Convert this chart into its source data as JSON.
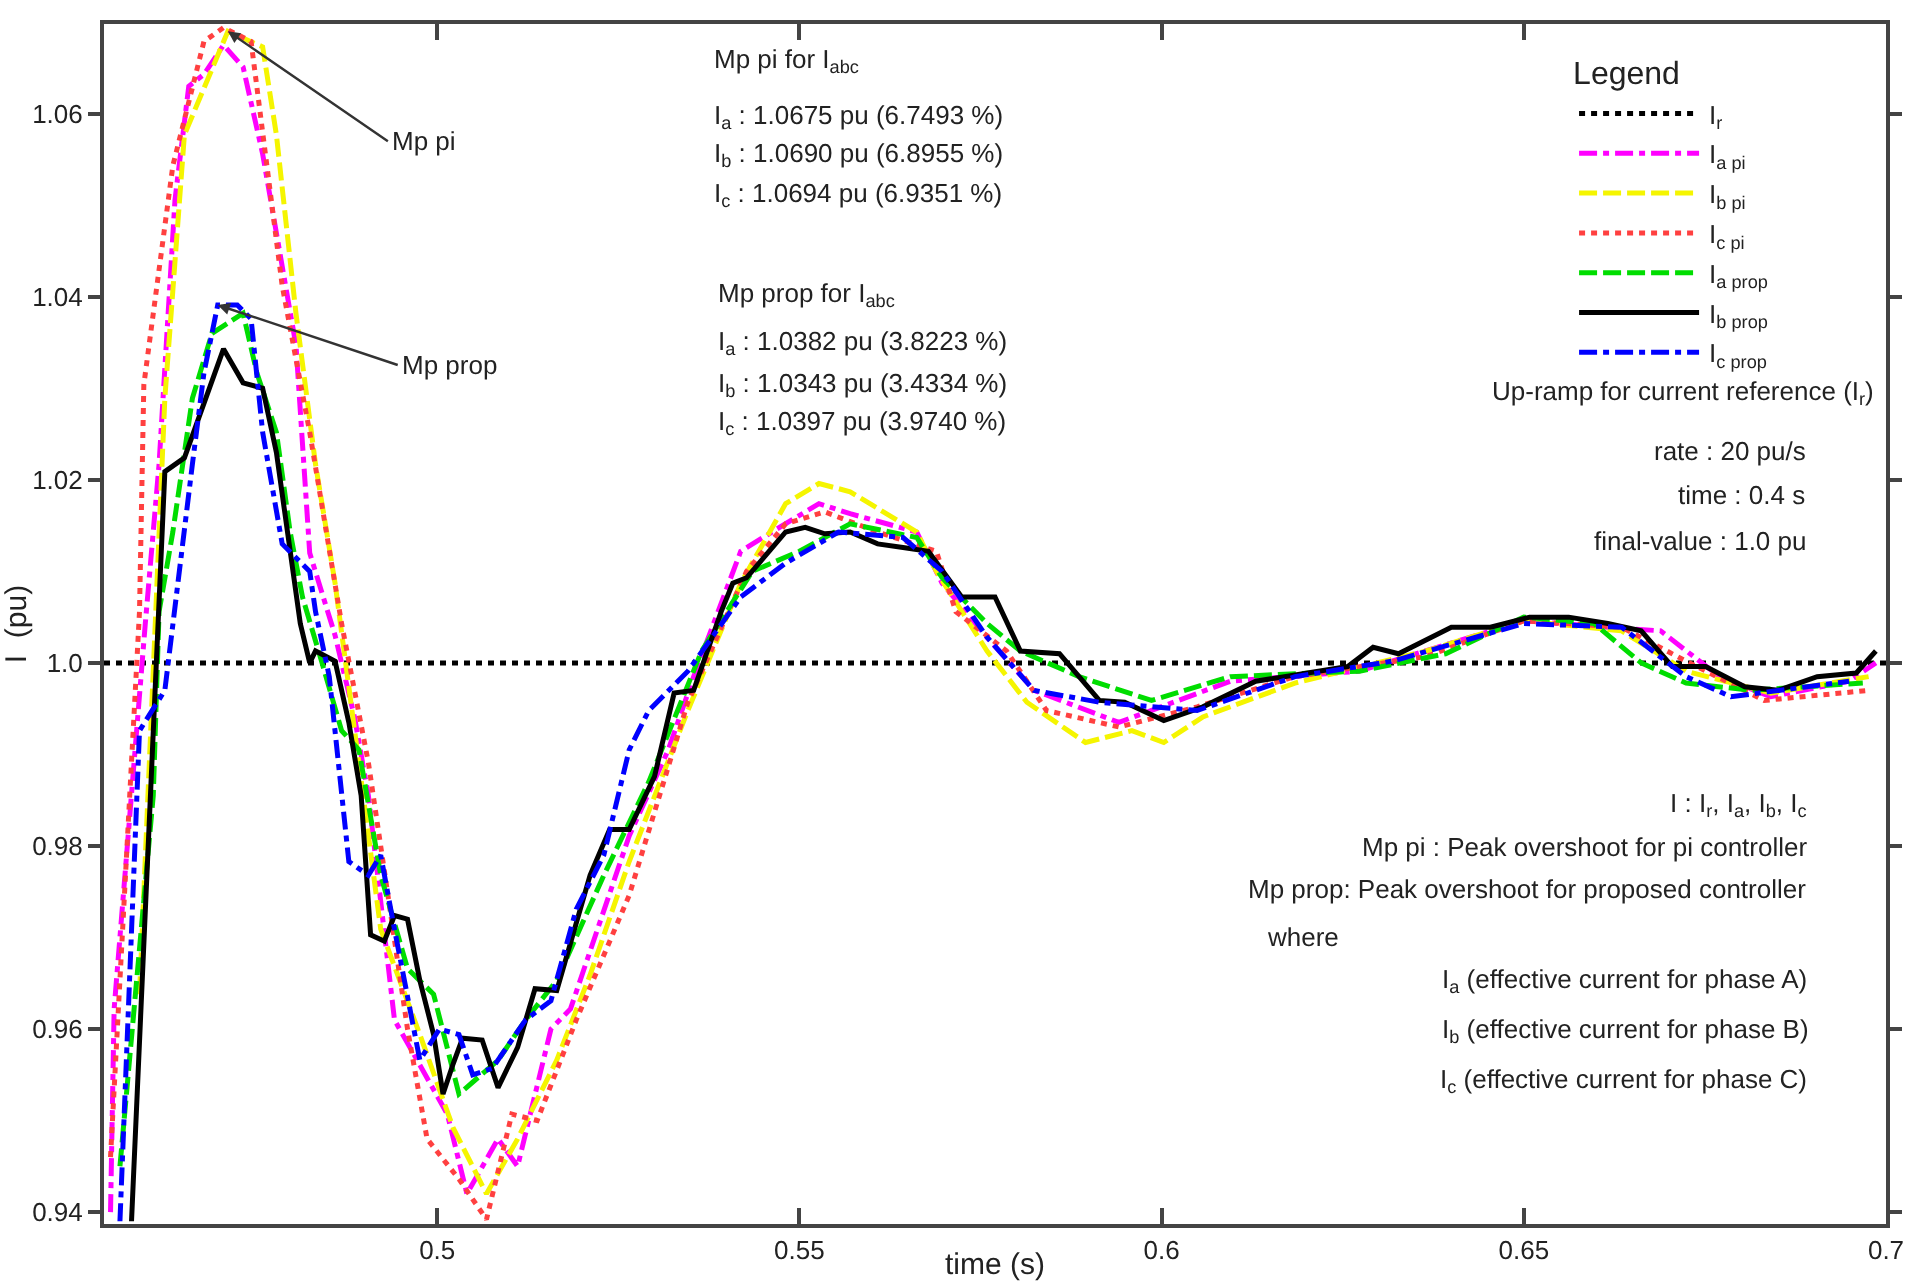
{
  "chart_data": {
    "type": "line",
    "xlabel": "time (s)",
    "ylabel": "I  (pu)",
    "legend_title": "Legend",
    "xlim": [
      0.454,
      0.7
    ],
    "xticks": [
      0.5,
      0.55,
      0.6,
      0.65,
      0.7
    ],
    "ylim": [
      0.9387,
      1.0698
    ],
    "yticks": [
      0.94,
      0.96,
      0.98,
      {
        "value": 1.0,
        "label": "1.0"
      },
      1.02,
      1.04,
      1.06
    ],
    "grid": false,
    "legend": "top right",
    "series": [
      {
        "name": "I$_{r}$",
        "color": "#000000",
        "line_style": "dotted",
        "x": [
          0.454,
          0.7
        ],
        "values": [
          1.0,
          1.0
        ]
      },
      {
        "name": "I$_{a pi}$",
        "color": "#ff00ff",
        "line_style": "dashdot",
        "x": [
          0.4549,
          0.4554,
          0.4597,
          0.4616,
          0.4638,
          0.4657,
          0.4678,
          0.4705,
          0.4732,
          0.4759,
          0.4805,
          0.4824,
          0.4859,
          0.4886,
          0.4905,
          0.4941,
          0.5014,
          0.5041,
          0.5084,
          0.5111,
          0.5157,
          0.5184,
          0.5265,
          0.5319,
          0.5354,
          0.5419,
          0.5462,
          0.5527,
          0.557,
          0.5662,
          0.5697,
          0.5759,
          0.5824,
          0.5941,
          0.6095,
          0.6273,
          0.65,
          0.6616,
          0.6689,
          0.677,
          0.6841,
          0.6949,
          0.6986
        ],
        "values": [
          0.94,
          0.9622,
          1.0043,
          1.0217,
          1.0506,
          1.063,
          1.0643,
          1.0675,
          1.0651,
          1.0556,
          1.0347,
          1.012,
          1.003,
          0.994,
          0.9855,
          0.961,
          0.9507,
          0.942,
          0.948,
          0.945,
          0.96,
          0.9622,
          0.9811,
          0.9905,
          0.9985,
          1.0122,
          1.0143,
          1.0174,
          1.0163,
          1.0143,
          1.0087,
          1.0028,
          0.997,
          0.9935,
          0.998,
          0.9991,
          1.0046,
          1.0039,
          1.0035,
          0.9985,
          0.9963,
          0.998,
          1.0
        ]
      },
      {
        "name": "I$_{b pi}$",
        "color": "#f5f500",
        "line_style": "dashed",
        "x": [
          0.4589,
          0.4624,
          0.4651,
          0.4711,
          0.4759,
          0.4778,
          0.4805,
          0.4832,
          0.4859,
          0.4886,
          0.4922,
          0.4976,
          0.5022,
          0.5068,
          0.5111,
          0.5165,
          0.5211,
          0.5265,
          0.5346,
          0.5419,
          0.5481,
          0.5527,
          0.557,
          0.5662,
          0.5689,
          0.5759,
          0.5814,
          0.5895,
          0.5959,
          0.6003,
          0.6057,
          0.6184,
          0.6365,
          0.65,
          0.6635,
          0.6724,
          0.6841,
          0.6976
        ],
        "values": [
          0.9638,
          1.0289,
          1.0577,
          1.069,
          1.0673,
          1.0577,
          1.0382,
          1.0217,
          1.0087,
          0.9926,
          0.9709,
          0.9594,
          0.9492,
          0.942,
          0.948,
          0.9566,
          0.9659,
          0.9783,
          0.9948,
          1.0087,
          1.0174,
          1.0196,
          1.0187,
          1.0143,
          1.01,
          1.0013,
          0.9957,
          0.9913,
          0.9926,
          0.9913,
          0.9941,
          0.9978,
          1.0013,
          1.0046,
          1.0035,
          0.9991,
          0.9967,
          0.9985
        ]
      },
      {
        "name": "I$_{c pi}$",
        "color": "#ff4040",
        "line_style": "dotted",
        "x": [
          0.4549,
          0.4589,
          0.4595,
          0.4635,
          0.4678,
          0.4705,
          0.4743,
          0.4786,
          0.4824,
          0.4868,
          0.4905,
          0.4932,
          0.4959,
          0.4986,
          0.503,
          0.5068,
          0.5103,
          0.5138,
          0.5192,
          0.5265,
          0.5346,
          0.5427,
          0.5481,
          0.5535,
          0.5608,
          0.5689,
          0.5716,
          0.5786,
          0.5841,
          0.5941,
          0.6049,
          0.6184,
          0.6365,
          0.65,
          0.6635,
          0.6724,
          0.6832,
          0.6976
        ],
        "values": [
          0.946,
          1.0056,
          1.0304,
          1.0543,
          1.0679,
          1.0694,
          1.0679,
          1.0412,
          1.0252,
          1.0043,
          0.9891,
          0.9746,
          0.96,
          0.948,
          0.9436,
          0.9392,
          0.9507,
          0.95,
          0.961,
          0.9746,
          0.9957,
          1.01,
          1.0152,
          1.0165,
          1.0143,
          1.0122,
          1.0056,
          1.0013,
          0.9948,
          0.993,
          0.9952,
          0.9985,
          1.0007,
          1.0046,
          1.0039,
          1.0002,
          0.9959,
          0.997
        ]
      },
      {
        "name": "I$_{a prop}$",
        "color": "#00dd00",
        "line_style": "dashed",
        "x": [
          0.4562,
          0.4608,
          0.4616,
          0.4635,
          0.4662,
          0.4689,
          0.4732,
          0.4751,
          0.4778,
          0.4797,
          0.4814,
          0.4841,
          0.4868,
          0.4892,
          0.4922,
          0.4959,
          0.4995,
          0.503,
          0.5084,
          0.5122,
          0.5165,
          0.523,
          0.5292,
          0.5365,
          0.5435,
          0.55,
          0.557,
          0.5662,
          0.5697,
          0.5759,
          0.5805,
          0.5886,
          0.5986,
          0.6095,
          0.6273,
          0.6392,
          0.65,
          0.6597,
          0.6662,
          0.6724,
          0.6814,
          0.6968
        ],
        "values": [
          0.945,
          0.9855,
          1.0056,
          1.0143,
          1.0289,
          1.036,
          1.0382,
          1.0317,
          1.0252,
          1.0143,
          1.0072,
          1.0,
          0.9926,
          0.9905,
          0.9768,
          0.9666,
          0.9638,
          0.9529,
          0.9566,
          0.961,
          0.9653,
          0.9768,
          0.987,
          1.0013,
          1.01,
          1.0122,
          1.0152,
          1.0137,
          1.0093,
          1.0043,
          1.0013,
          0.9985,
          0.9959,
          0.9985,
          0.9991,
          1.001,
          1.005,
          1.0043,
          1.0,
          0.9978,
          0.997,
          0.9978
        ]
      },
      {
        "name": "I$_{b prop}$",
        "color": "#000000",
        "line_style": "solid",
        "x": [
          0.4578,
          0.4624,
          0.4651,
          0.4705,
          0.4732,
          0.4759,
          0.4778,
          0.4811,
          0.4824,
          0.4832,
          0.4859,
          0.4878,
          0.4895,
          0.4908,
          0.4927,
          0.4941,
          0.4959,
          0.4976,
          0.4995,
          0.5008,
          0.5022,
          0.5035,
          0.5062,
          0.5084,
          0.5111,
          0.5135,
          0.5165,
          0.5211,
          0.5238,
          0.5265,
          0.53,
          0.5327,
          0.5354,
          0.5392,
          0.5408,
          0.5427,
          0.5481,
          0.5508,
          0.5535,
          0.557,
          0.5608,
          0.5643,
          0.5678,
          0.5724,
          0.577,
          0.5805,
          0.5859,
          0.5914,
          0.5949,
          0.6003,
          0.6057,
          0.613,
          0.6257,
          0.6292,
          0.6327,
          0.64,
          0.6454,
          0.6508,
          0.6562,
          0.6616,
          0.6662,
          0.6705,
          0.6751,
          0.6805,
          0.6851,
          0.6905,
          0.6959,
          0.6986
        ],
        "values": [
          0.939,
          1.0209,
          1.0224,
          1.0343,
          1.0306,
          1.03,
          1.023,
          1.0043,
          1.0,
          1.0013,
          1.0002,
          0.9935,
          0.9855,
          0.9703,
          0.9696,
          0.9724,
          0.972,
          0.9653,
          0.9594,
          0.9529,
          0.9562,
          0.959,
          0.9588,
          0.9536,
          0.958,
          0.9644,
          0.9642,
          0.9768,
          0.9818,
          0.9818,
          0.9876,
          0.9967,
          0.997,
          1.0056,
          1.0087,
          1.0093,
          1.0143,
          1.0148,
          1.0141,
          1.0143,
          1.013,
          1.0126,
          1.0122,
          1.0072,
          1.0072,
          1.0013,
          1.001,
          0.9959,
          0.9957,
          0.9937,
          0.9952,
          0.998,
          0.9996,
          1.0017,
          1.001,
          1.0039,
          1.0039,
          1.005,
          1.005,
          1.0043,
          1.0035,
          0.9996,
          0.9996,
          0.9974,
          0.997,
          0.9985,
          0.9989,
          1.0013
        ]
      },
      {
        "name": "I$_{c prop}$",
        "color": "#0000ff",
        "line_style": "dashdot",
        "x": [
          0.4562,
          0.4589,
          0.4624,
          0.4662,
          0.4678,
          0.4697,
          0.4724,
          0.4743,
          0.4759,
          0.4786,
          0.4824,
          0.4832,
          0.4851,
          0.4878,
          0.4905,
          0.4922,
          0.4941,
          0.4976,
          0.5003,
          0.503,
          0.5049,
          0.5076,
          0.5122,
          0.5157,
          0.5192,
          0.523,
          0.5265,
          0.5292,
          0.5346,
          0.5419,
          0.5481,
          0.5554,
          0.5643,
          0.5697,
          0.5759,
          0.5824,
          0.5914,
          0.6049,
          0.6184,
          0.6319,
          0.65,
          0.6635,
          0.6724,
          0.6786,
          0.6949
        ],
        "values": [
          0.939,
          0.9926,
          0.997,
          1.0217,
          1.0317,
          1.0391,
          1.0391,
          1.0376,
          1.0252,
          1.013,
          1.01,
          1.0056,
          0.9985,
          0.9783,
          0.9768,
          0.979,
          0.9709,
          0.9566,
          0.96,
          0.9594,
          0.955,
          0.9557,
          0.961,
          0.9631,
          0.9731,
          0.979,
          0.9905,
          0.9948,
          0.9991,
          1.0072,
          1.0109,
          1.0143,
          1.0137,
          1.01,
          1.0028,
          0.997,
          0.9957,
          0.9948,
          0.9985,
          1.0002,
          1.0043,
          1.0039,
          0.9985,
          0.9963,
          0.998
        ]
      }
    ],
    "annotations": [
      "Mp pi for I$_{abc}$",
      "I$_{a}$ : 1.0675 pu (6.7493 %)",
      "I$_{b}$ : 1.0690 pu (6.8955 %)",
      "I$_{c}$ : 1.0694 pu (6.9351 %)",
      "Mp prop for I$_{abc}$",
      "I$_{a}$ : 1.0382 pu (3.8223 %)",
      "I$_{b}$ : 1.0343 pu (3.4334 %)",
      "I$_{c}$ : 1.0397 pu (3.9740 %)",
      "Up-ramp for current reference (I$_{r}$)",
      "rate : 20 pu/s",
      "time : 0.4 s",
      "final-value : 1.0 pu",
      "I : I$_{r}$, I$_{a}$, I$_{b}$, I$_{c}$",
      "Mp pi : Peak overshoot for pi controller",
      "Mp prop: Peak overshoot for proposed controller",
      "where",
      "I$_{a}$ (effective current for phase A)",
      "I$_{b}$ (effective current for phase B)",
      "I$_{c}$ (effective current for phase C)",
      {
        "text": "Mp pi",
        "x": 0.4711,
        "y": 1.069
      },
      {
        "text": "Mp prop",
        "x": 0.4697,
        "y": 1.0391
      }
    ]
  }
}
